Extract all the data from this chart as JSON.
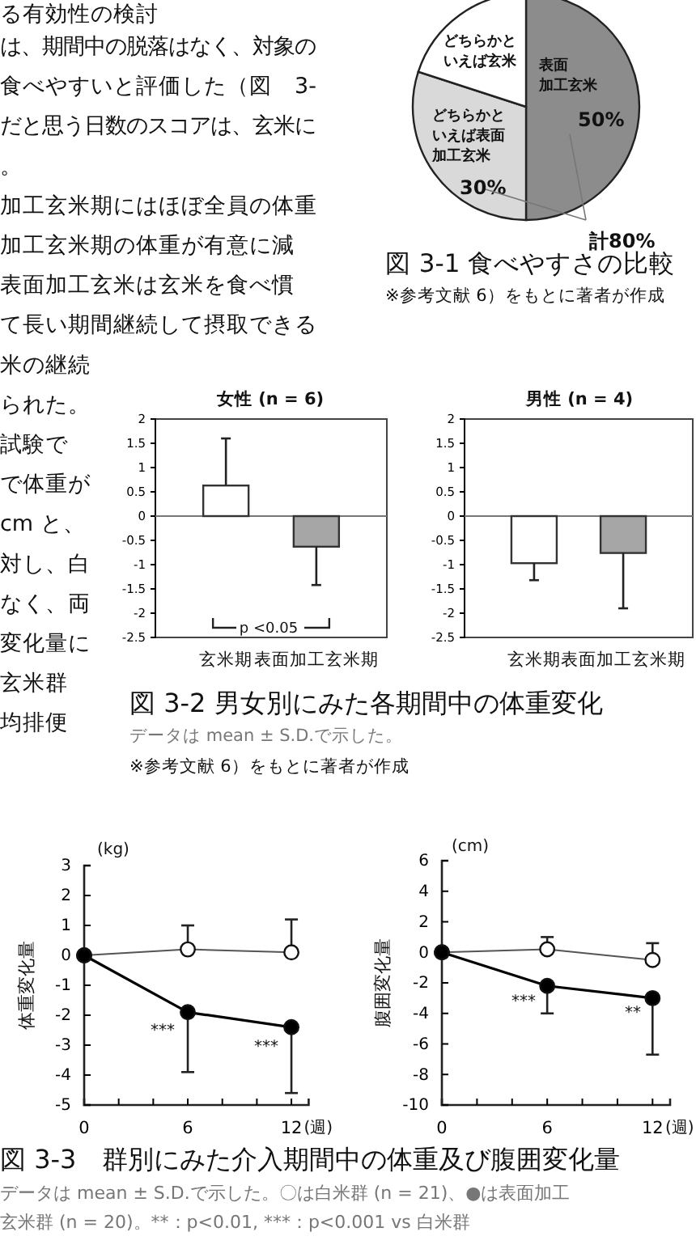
{
  "chart_data": [
    {
      "type": "other",
      "annotations": [
        "る有効性の検討",
        "は、期間中の脱落はなく、対象の",
        "食べやすいと評価した（図　3-",
        "だと思う日数のスコアは、玄米に",
        "。",
        "加工玄米期にはほぼ全員の体重",
        "加工玄米期の体重が有意に減",
        "表面加工玄米は玄米を食べ慣",
        "て長い期間継続して摂取できる",
        "米の継続",
        "られた。",
        "試験で",
        "で体重が",
        "cm と、",
        "対し、白",
        "なく、両",
        "変化量に",
        "玄米群",
        "均排便"
      ]
    },
    {
      "type": "pie",
      "title": "図 3-1 食べやすさの比較",
      "subtitle": "※参考文献 6）をもとに著者が作成",
      "categories": [
        "表面加工玄米",
        "どちらかといえば表面加工玄米",
        "どちらかといえば玄米"
      ],
      "values": [
        50,
        30,
        20
      ],
      "colors": [
        "#8c8c8c",
        "#d9d9d9",
        "#ffffff"
      ],
      "value_labels": [
        "50%",
        "30%",
        null
      ],
      "annotations": [
        "計80%"
      ]
    },
    {
      "type": "bar",
      "title": "女性 (n = 6)",
      "categories": [
        "玄米期",
        "表面加工玄米期"
      ],
      "values": [
        0.63,
        -0.63
      ],
      "colors": [
        "#ffffff",
        "#a6a6a6"
      ],
      "errors": [
        [
          0.63,
          1.6
        ],
        [
          -1.42,
          -0.63
        ]
      ],
      "ylim": [
        -2.5,
        2
      ],
      "yticks": [
        2,
        1.5,
        1,
        0.5,
        0,
        -0.5,
        -1,
        -1.5,
        -2,
        -2.5
      ],
      "annotations": [
        "p <0.05",
        "図 3-2 男女別にみた各期間中の体重変化",
        "データは mean ± S.D.で示した。",
        "※参考文献 6）をもとに著者が作成"
      ]
    },
    {
      "type": "bar",
      "title": "男性 (n = 4)",
      "categories": [
        "玄米期",
        "表面加工玄米期"
      ],
      "values": [
        -0.97,
        -0.76
      ],
      "colors": [
        "#ffffff",
        "#a6a6a6"
      ],
      "errors": [
        [
          -1.32,
          -0.97
        ],
        [
          -1.9,
          -0.76
        ]
      ],
      "ylim": [
        -2.5,
        2
      ],
      "yticks": [
        2,
        1.5,
        1,
        0.5,
        0,
        -0.5,
        -1,
        -1.5,
        -2,
        -2.5
      ]
    },
    {
      "type": "line",
      "xlabel": "(週)",
      "ylabel": "体重変化量",
      "x": [
        0,
        6,
        12
      ],
      "xlim": [
        0,
        13
      ],
      "xticks": [
        0,
        {
          "value": 2,
          "label": null
        },
        {
          "value": 4,
          "label": null
        },
        6,
        {
          "value": 8,
          "label": null
        },
        {
          "value": 10,
          "label": null
        },
        12
      ],
      "ylim": [
        -5,
        3
      ],
      "yticks": [
        -5,
        -4,
        -3,
        -2,
        -1,
        0,
        1,
        2,
        3
      ],
      "marker": "circle",
      "series": [
        {
          "color": "#ffffff",
          "values": [
            0,
            0.2,
            0.1
          ],
          "errors": [
            null,
            [
              0.2,
              1.0
            ],
            [
              0.1,
              1.2
            ]
          ]
        },
        {
          "color": "#000000",
          "values": [
            0,
            -1.9,
            -2.4
          ],
          "errors": [
            null,
            [
              -3.9,
              -1.9
            ],
            [
              -4.6,
              -2.4
            ]
          ]
        }
      ],
      "annotations": [
        "(kg)",
        "***",
        "***",
        "図 3-3　群別にみた介入期間中の体重及び腹囲変化量",
        "データは mean ± S.D.で示した。〇は白米群 (n = 21)、●は表面加工",
        "玄米群 (n = 20)。**：p<0.01, ***：p<0.001 vs 白米群"
      ]
    },
    {
      "type": "line",
      "xlabel": "(週)",
      "ylabel": "腹囲変化量",
      "x": [
        0,
        6,
        12
      ],
      "xlim": [
        0,
        13
      ],
      "xticks": [
        0,
        {
          "value": 2,
          "label": null
        },
        {
          "value": 4,
          "label": null
        },
        6,
        {
          "value": 8,
          "label": null
        },
        {
          "value": 10,
          "label": null
        },
        12
      ],
      "ylim": [
        -10,
        6
      ],
      "yticks": [
        -10,
        -8,
        -6,
        -4,
        -2,
        0,
        2,
        4,
        6
      ],
      "marker": "circle",
      "series": [
        {
          "color": "#ffffff",
          "values": [
            0,
            0.2,
            -0.5
          ],
          "errors": [
            null,
            [
              0.2,
              1.0
            ],
            [
              -0.5,
              0.6
            ]
          ]
        },
        {
          "color": "#000000",
          "values": [
            0,
            -2.2,
            -3.0
          ],
          "errors": [
            null,
            [
              -4.0,
              -2.2
            ],
            [
              -6.7,
              -3.0
            ]
          ]
        }
      ],
      "annotations": [
        "(cm)",
        "***",
        "**"
      ]
    }
  ]
}
